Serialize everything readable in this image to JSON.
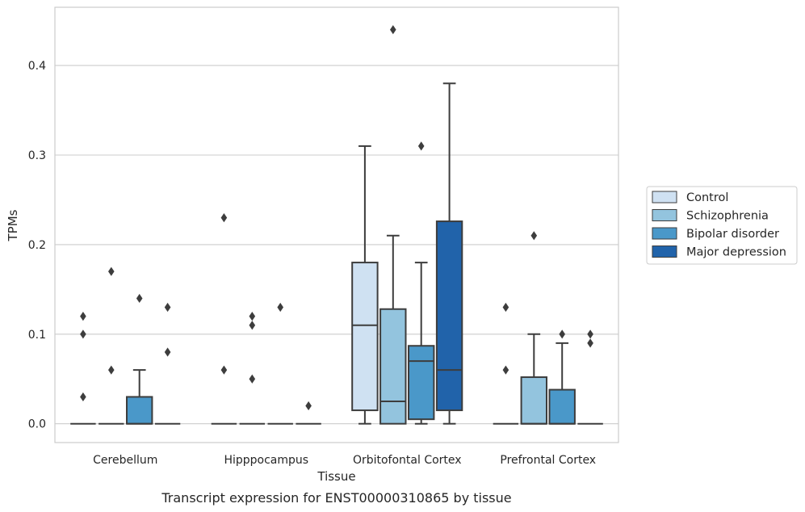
{
  "caption": "Transcript expression for ENST00000310865 by tissue",
  "colors": {
    "Control": "#cfe1f2",
    "Schizophrenia": "#93c4de",
    "Bipolar disorder": "#4a98c9",
    "Major depression": "#2163aa",
    "edge": "#3d3d3d",
    "grid": "#cccccc",
    "frame": "#cccccc"
  },
  "chart_data": {
    "type": "box",
    "xlabel": "Tissue",
    "ylabel": "TPMs",
    "ylim": [
      -0.021,
      0.465
    ],
    "yticks": [
      0.0,
      0.1,
      0.2,
      0.3,
      0.4
    ],
    "ytick_labels": [
      "0.0",
      "0.1",
      "0.2",
      "0.3",
      "0.4"
    ],
    "grid": "horizontal",
    "legend_position": "right",
    "categories": [
      "Cerebellum",
      "Hipppocampus",
      "Orbitofontal Cortex",
      "Prefrontal Cortex"
    ],
    "series": [
      {
        "name": "Control",
        "boxes": [
          {
            "whislo": 0,
            "q1": 0,
            "med": 0,
            "q3": 0,
            "whishi": 0,
            "fliers": [
              0.03,
              0.1,
              0.12
            ]
          },
          {
            "whislo": 0,
            "q1": 0,
            "med": 0,
            "q3": 0,
            "whishi": 0,
            "fliers": [
              0.06,
              0.23
            ]
          },
          {
            "whislo": 0,
            "q1": 0.015,
            "med": 0.11,
            "q3": 0.18,
            "whishi": 0.31,
            "fliers": []
          },
          {
            "whislo": 0,
            "q1": 0,
            "med": 0,
            "q3": 0,
            "whishi": 0,
            "fliers": [
              0.06,
              0.13
            ]
          }
        ]
      },
      {
        "name": "Schizophrenia",
        "boxes": [
          {
            "whislo": 0,
            "q1": 0,
            "med": 0,
            "q3": 0,
            "whishi": 0,
            "fliers": [
              0.06,
              0.17
            ]
          },
          {
            "whislo": 0,
            "q1": 0,
            "med": 0,
            "q3": 0,
            "whishi": 0,
            "fliers": [
              0.05,
              0.11,
              0.12
            ]
          },
          {
            "whislo": 0,
            "q1": 0,
            "med": 0.025,
            "q3": 0.128,
            "whishi": 0.21,
            "fliers": [
              0.44
            ]
          },
          {
            "whislo": 0,
            "q1": 0,
            "med": 0,
            "q3": 0.052,
            "whishi": 0.1,
            "fliers": [
              0.21
            ]
          }
        ]
      },
      {
        "name": "Bipolar disorder",
        "boxes": [
          {
            "whislo": 0,
            "q1": 0,
            "med": 0,
            "q3": 0.03,
            "whishi": 0.06,
            "fliers": [
              0.14
            ]
          },
          {
            "whislo": 0,
            "q1": 0,
            "med": 0,
            "q3": 0,
            "whishi": 0,
            "fliers": [
              0.13
            ]
          },
          {
            "whislo": 0,
            "q1": 0.005,
            "med": 0.07,
            "q3": 0.087,
            "whishi": 0.18,
            "fliers": [
              0.31
            ]
          },
          {
            "whislo": 0,
            "q1": 0,
            "med": 0,
            "q3": 0.038,
            "whishi": 0.09,
            "fliers": [
              0.1
            ]
          }
        ]
      },
      {
        "name": "Major depression",
        "boxes": [
          {
            "whislo": 0,
            "q1": 0,
            "med": 0,
            "q3": 0,
            "whishi": 0,
            "fliers": [
              0.08,
              0.13
            ]
          },
          {
            "whislo": 0,
            "q1": 0,
            "med": 0,
            "q3": 0,
            "whishi": 0,
            "fliers": [
              0.02
            ]
          },
          {
            "whislo": 0,
            "q1": 0.015,
            "med": 0.06,
            "q3": 0.226,
            "whishi": 0.38,
            "fliers": []
          },
          {
            "whislo": 0,
            "q1": 0,
            "med": 0,
            "q3": 0,
            "whishi": 0,
            "fliers": [
              0.09,
              0.1
            ]
          }
        ]
      }
    ]
  }
}
